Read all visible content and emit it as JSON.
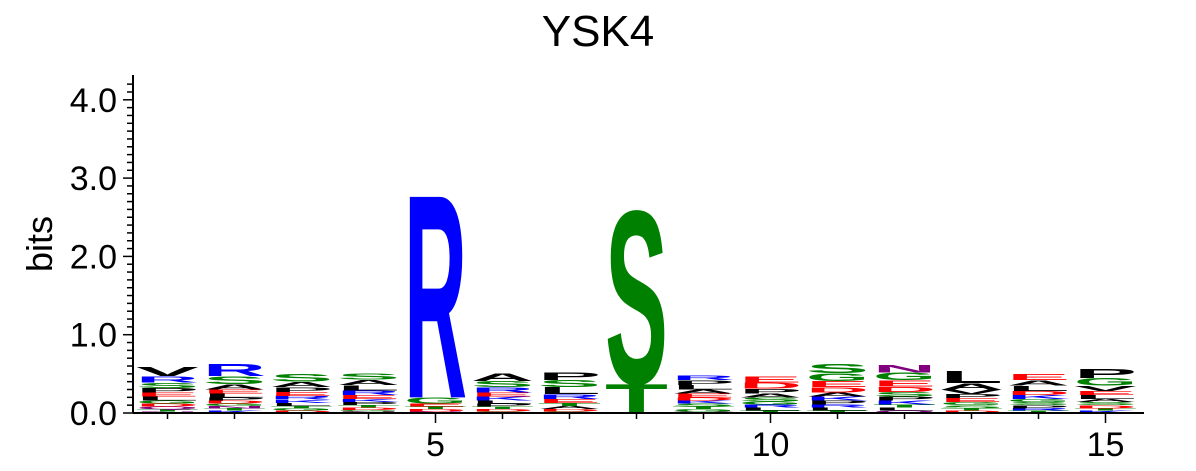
{
  "chart_data": {
    "type": "sequence-logo",
    "title": "YSK4",
    "ylabel": "bits",
    "ylim": [
      0,
      4.3
    ],
    "yticks": [
      "0.0",
      "1.0",
      "2.0",
      "3.0",
      "4.0"
    ],
    "xticks": [
      5,
      10,
      15
    ],
    "positions": [
      {
        "pos": 1,
        "letters": [
          {
            "l": "V",
            "h": 0.12
          },
          {
            "l": "R",
            "h": 0.08
          },
          {
            "l": "S",
            "h": 0.07
          },
          {
            "l": "L",
            "h": 0.05
          },
          {
            "l": "P",
            "h": 0.06
          },
          {
            "l": "E",
            "h": 0.05
          },
          {
            "l": "D",
            "h": 0.04
          },
          {
            "l": "G",
            "h": 0.04
          },
          {
            "l": "T",
            "h": 0.03
          },
          {
            "l": "Q",
            "h": 0.03
          },
          {
            "l": "N",
            "h": 0.02
          }
        ]
      },
      {
        "pos": 2,
        "letters": [
          {
            "l": "R",
            "h": 0.16
          },
          {
            "l": "S",
            "h": 0.1
          },
          {
            "l": "A",
            "h": 0.07
          },
          {
            "l": "L",
            "h": 0.05
          },
          {
            "l": "E",
            "h": 0.05
          },
          {
            "l": "D",
            "h": 0.04
          },
          {
            "l": "P",
            "h": 0.04
          },
          {
            "l": "K",
            "h": 0.03
          },
          {
            "l": "T",
            "h": 0.03
          },
          {
            "l": "N",
            "h": 0.03
          },
          {
            "l": "G",
            "h": 0.03
          }
        ]
      },
      {
        "pos": 3,
        "letters": [
          {
            "l": "S",
            "h": 0.1
          },
          {
            "l": "A",
            "h": 0.07
          },
          {
            "l": "P",
            "h": 0.06
          },
          {
            "l": "R",
            "h": 0.05
          },
          {
            "l": "E",
            "h": 0.05
          },
          {
            "l": "L",
            "h": 0.04
          },
          {
            "l": "K",
            "h": 0.04
          },
          {
            "l": "D",
            "h": 0.03
          },
          {
            "l": "G",
            "h": 0.03
          },
          {
            "l": "T",
            "h": 0.03
          }
        ]
      },
      {
        "pos": 4,
        "letters": [
          {
            "l": "L",
            "h": 0.07
          },
          {
            "l": "S",
            "h": 0.08
          },
          {
            "l": "A",
            "h": 0.07
          },
          {
            "l": "R",
            "h": 0.06
          },
          {
            "l": "E",
            "h": 0.05
          },
          {
            "l": "P",
            "h": 0.04
          },
          {
            "l": "K",
            "h": 0.04
          },
          {
            "l": "D",
            "h": 0.03
          },
          {
            "l": "T",
            "h": 0.03
          },
          {
            "l": "N",
            "h": 0.02
          },
          {
            "l": "G",
            "h": 0.02
          }
        ]
      },
      {
        "pos": 5,
        "letters": [
          {
            "l": "R",
            "h": 2.68
          },
          {
            "l": "G",
            "h": 0.08
          },
          {
            "l": "E",
            "h": 0.04
          },
          {
            "l": "D",
            "h": 0.03
          },
          {
            "l": "T",
            "h": 0.03
          },
          {
            "l": "N",
            "h": 0.02
          }
        ]
      },
      {
        "pos": 6,
        "letters": [
          {
            "l": "A",
            "h": 0.1
          },
          {
            "l": "S",
            "h": 0.08
          },
          {
            "l": "R",
            "h": 0.07
          },
          {
            "l": "K",
            "h": 0.05
          },
          {
            "l": "E",
            "h": 0.05
          },
          {
            "l": "P",
            "h": 0.04
          },
          {
            "l": "L",
            "h": 0.04
          },
          {
            "l": "D",
            "h": 0.03
          },
          {
            "l": "T",
            "h": 0.03
          },
          {
            "l": "G",
            "h": 0.02
          }
        ]
      },
      {
        "pos": 7,
        "letters": [
          {
            "l": "L",
            "h": 0.09
          },
          {
            "l": "P",
            "h": 0.1
          },
          {
            "l": "S",
            "h": 0.09
          },
          {
            "l": "R",
            "h": 0.06
          },
          {
            "l": "E",
            "h": 0.05
          },
          {
            "l": "A",
            "h": 0.04
          },
          {
            "l": "T",
            "h": 0.04
          },
          {
            "l": "D",
            "h": 0.03
          },
          {
            "l": "G",
            "h": 0.02
          }
        ]
      },
      {
        "pos": 8,
        "letters": [
          {
            "l": "S",
            "h": 2.28
          },
          {
            "l": "T",
            "h": 0.38
          }
        ]
      },
      {
        "pos": 9,
        "letters": [
          {
            "l": "L",
            "h": 0.06
          },
          {
            "l": "P",
            "h": 0.06
          },
          {
            "l": "R",
            "h": 0.06
          },
          {
            "l": "E",
            "h": 0.05
          },
          {
            "l": "A",
            "h": 0.05
          },
          {
            "l": "S",
            "h": 0.04
          },
          {
            "l": "K",
            "h": 0.04
          },
          {
            "l": "D",
            "h": 0.04
          },
          {
            "l": "G",
            "h": 0.03
          },
          {
            "l": "T",
            "h": 0.03
          },
          {
            "l": "V",
            "h": 0.02
          }
        ]
      },
      {
        "pos": 10,
        "letters": [
          {
            "l": "D",
            "h": 0.08
          },
          {
            "l": "E",
            "h": 0.08
          },
          {
            "l": "P",
            "h": 0.06
          },
          {
            "l": "S",
            "h": 0.05
          },
          {
            "l": "A",
            "h": 0.05
          },
          {
            "l": "L",
            "h": 0.04
          },
          {
            "l": "R",
            "h": 0.04
          },
          {
            "l": "G",
            "h": 0.04
          },
          {
            "l": "T",
            "h": 0.03
          }
        ]
      },
      {
        "pos": 11,
        "letters": [
          {
            "l": "S",
            "h": 0.12
          },
          {
            "l": "G",
            "h": 0.1
          },
          {
            "l": "E",
            "h": 0.08
          },
          {
            "l": "D",
            "h": 0.07
          },
          {
            "l": "P",
            "h": 0.05
          },
          {
            "l": "K",
            "h": 0.05
          },
          {
            "l": "A",
            "h": 0.05
          },
          {
            "l": "L",
            "h": 0.04
          },
          {
            "l": "R",
            "h": 0.04
          },
          {
            "l": "T",
            "h": 0.03
          }
        ]
      },
      {
        "pos": 12,
        "letters": [
          {
            "l": "G",
            "h": 0.1
          },
          {
            "l": "N",
            "h": 0.1
          },
          {
            "l": "E",
            "h": 0.08
          },
          {
            "l": "D",
            "h": 0.07
          },
          {
            "l": "S",
            "h": 0.06
          },
          {
            "l": "K",
            "h": 0.05
          },
          {
            "l": "P",
            "h": 0.05
          },
          {
            "l": "L",
            "h": 0.04
          },
          {
            "l": "T",
            "h": 0.04
          },
          {
            "l": "Q",
            "h": 0.03
          }
        ]
      },
      {
        "pos": 13,
        "letters": [
          {
            "l": "L",
            "h": 0.16
          },
          {
            "l": "A",
            "h": 0.08
          },
          {
            "l": "V",
            "h": 0.06
          },
          {
            "l": "E",
            "h": 0.05
          },
          {
            "l": "P",
            "h": 0.05
          },
          {
            "l": "S",
            "h": 0.04
          },
          {
            "l": "G",
            "h": 0.04
          },
          {
            "l": "D",
            "h": 0.03
          },
          {
            "l": "T",
            "h": 0.03
          }
        ]
      },
      {
        "pos": 14,
        "letters": [
          {
            "l": "E",
            "h": 0.08
          },
          {
            "l": "L",
            "h": 0.07
          },
          {
            "l": "A",
            "h": 0.07
          },
          {
            "l": "K",
            "h": 0.05
          },
          {
            "l": "D",
            "h": 0.05
          },
          {
            "l": "P",
            "h": 0.04
          },
          {
            "l": "S",
            "h": 0.04
          },
          {
            "l": "G",
            "h": 0.04
          },
          {
            "l": "T",
            "h": 0.03
          },
          {
            "l": "R",
            "h": 0.03
          }
        ]
      },
      {
        "pos": 15,
        "letters": [
          {
            "l": "P",
            "h": 0.12
          },
          {
            "l": "G",
            "h": 0.1
          },
          {
            "l": "V",
            "h": 0.07
          },
          {
            "l": "L",
            "h": 0.05
          },
          {
            "l": "E",
            "h": 0.05
          },
          {
            "l": "D",
            "h": 0.04
          },
          {
            "l": "S",
            "h": 0.04
          },
          {
            "l": "A",
            "h": 0.04
          },
          {
            "l": "K",
            "h": 0.03
          },
          {
            "l": "T",
            "h": 0.03
          }
        ]
      }
    ]
  },
  "colors": {
    "basic": "#0000ff",
    "acidic": "#ff0000",
    "polar": "#008000",
    "amide": "#800080",
    "hydrophobic": "#000000"
  }
}
